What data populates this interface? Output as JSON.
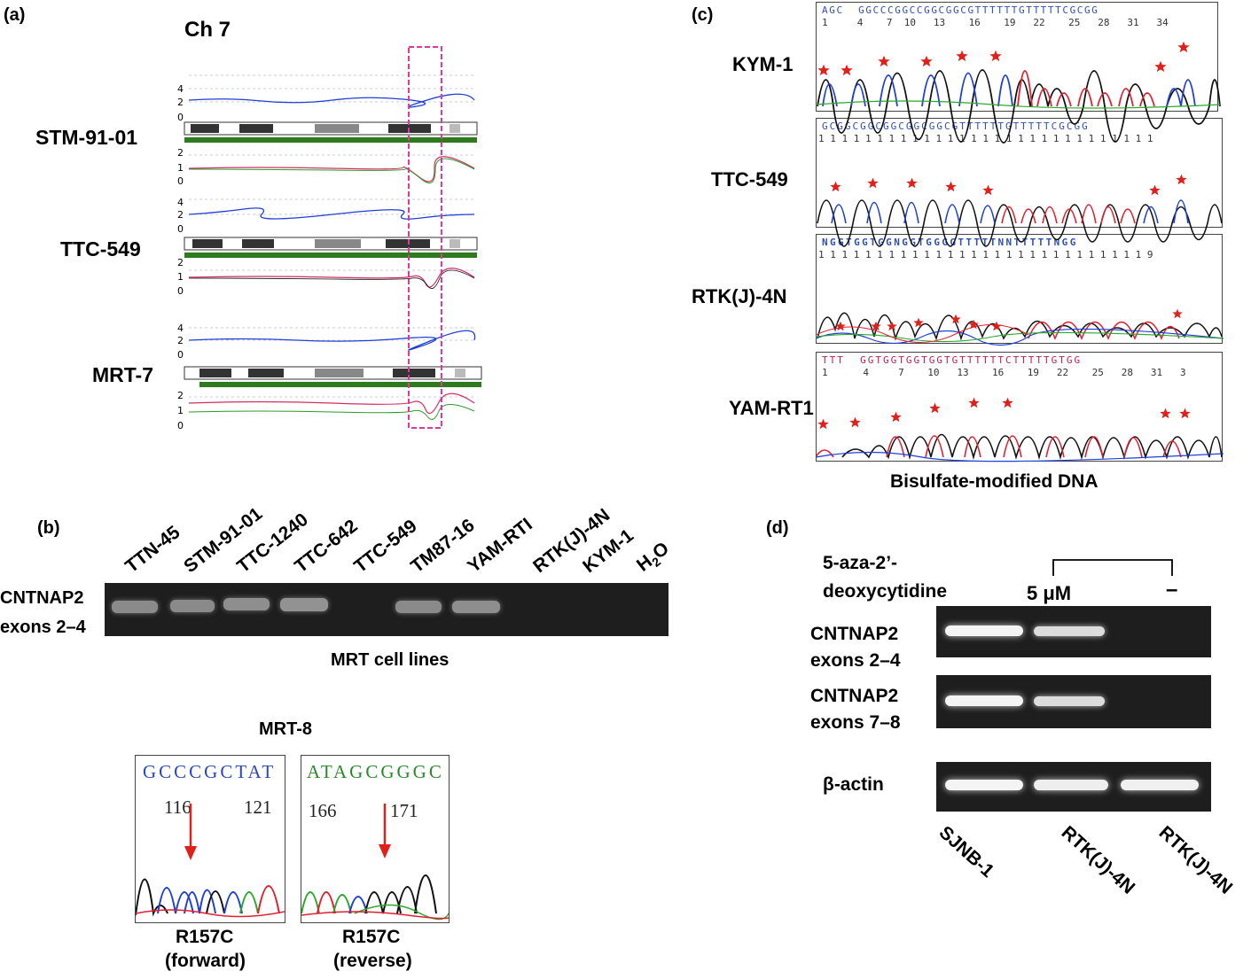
{
  "panel_a": {
    "letter": "(a)",
    "title": "Ch 7",
    "tracks": [
      {
        "name": "STM-91-01",
        "upper_ticks": [
          "4",
          "2",
          "0"
        ],
        "lower_ticks": [
          "2",
          "1",
          "0"
        ]
      },
      {
        "name": "TTC-549",
        "upper_ticks": [
          "4",
          "2",
          "0"
        ],
        "lower_ticks": [
          "2",
          "1",
          "0"
        ]
      },
      {
        "name": "MRT-7",
        "upper_ticks": [
          "4",
          "2",
          "0"
        ],
        "lower_ticks": [
          "2",
          "1",
          "0"
        ]
      }
    ]
  },
  "panel_b": {
    "letter": "(b)",
    "lanes": [
      "TTN-45",
      "STM-91-01",
      "TTC-1240",
      "TTC-642",
      "TTC-549",
      "TM87-16",
      "YAM-RTI",
      "RTK(J)-4N",
      "KYM-1"
    ],
    "lane_h2o_base": "H",
    "lane_h2o_sub": "2",
    "lane_h2o_tail": "O",
    "band_present": [
      1,
      1,
      1,
      1,
      0,
      1,
      1,
      0,
      0,
      0
    ],
    "row_label_line1": "CNTNAP2",
    "row_label_line2": "exons 2–4",
    "caption": "MRT cell lines",
    "mrt8": {
      "title": "MRT-8",
      "forward": {
        "seq": "GCCCGCTAT",
        "num_left": "116",
        "num_right": "121",
        "label1": "R157C",
        "label2": "(forward)"
      },
      "reverse": {
        "seq": "ATAGCGGGC",
        "num_left": "166",
        "num_right": "171",
        "label1": "R157C",
        "label2": "(reverse)"
      }
    }
  },
  "panel_c": {
    "letter": "(c)",
    "caption": "Bisulfate-modified DNA",
    "rows": [
      {
        "name": "KYM-1",
        "seq": "AGC  GGCCCGGCCGGCGGCGTTTTTTGTTTTTCGCGG",
        "nums": "1     4    7  10   13    16    19   22    25   28   31   34"
      },
      {
        "name": "TTC-549",
        "seq": "GCGGCGGCGGCGGCGGCGTTTTTTGTTTTTCGCGG",
        "nums": "1 1 1 1 1 1 1 1 1 1 1 1 1 1 1 1 1 1 1 1 1 1 1 1 1 1 1 1 1"
      },
      {
        "name": "RTK(J)-4N",
        "seq": "NGGTGGTGGNGGTGGGGTTTTTNNTTTTTNGG",
        "nums": "1 1 1 1 1 1 1 1 1 1 1 1 1 1 1 1 1 1 1 1 1 1 1 1 1 1 1 1 9"
      },
      {
        "name": "YAM-RT1",
        "seq": "TTT  GGTGGTGGTGGTGTTTTTTCTTTTTGTGG",
        "nums": "1      4     7    10   13    16    19   22    25   28   31   3"
      }
    ]
  },
  "panel_d": {
    "letter": "(d)",
    "treatment_line1": "5-aza-2’-",
    "treatment_line2": "deoxycytidine",
    "dose": "5 μM",
    "none": "–",
    "rows": [
      {
        "line1": "CNTNAP2",
        "line2": "exons 2–4"
      },
      {
        "line1": "CNTNAP2",
        "line2": "exons 7–8"
      },
      {
        "line1": "β-actin",
        "line2": ""
      }
    ],
    "band_present": [
      [
        1,
        1,
        0
      ],
      [
        1,
        1,
        0
      ],
      [
        1,
        1,
        1
      ]
    ],
    "lanes": [
      "SJNB-1",
      "RTK(J)-4N",
      "RTK(J)-4N"
    ]
  },
  "colors": {
    "red_star": "#e0201b",
    "dashed_box": "#e0389c",
    "trace_blue": "#1f3fd6",
    "trace_red": "#e02030",
    "trace_green": "#2aa82a",
    "trace_black": "#111111"
  }
}
